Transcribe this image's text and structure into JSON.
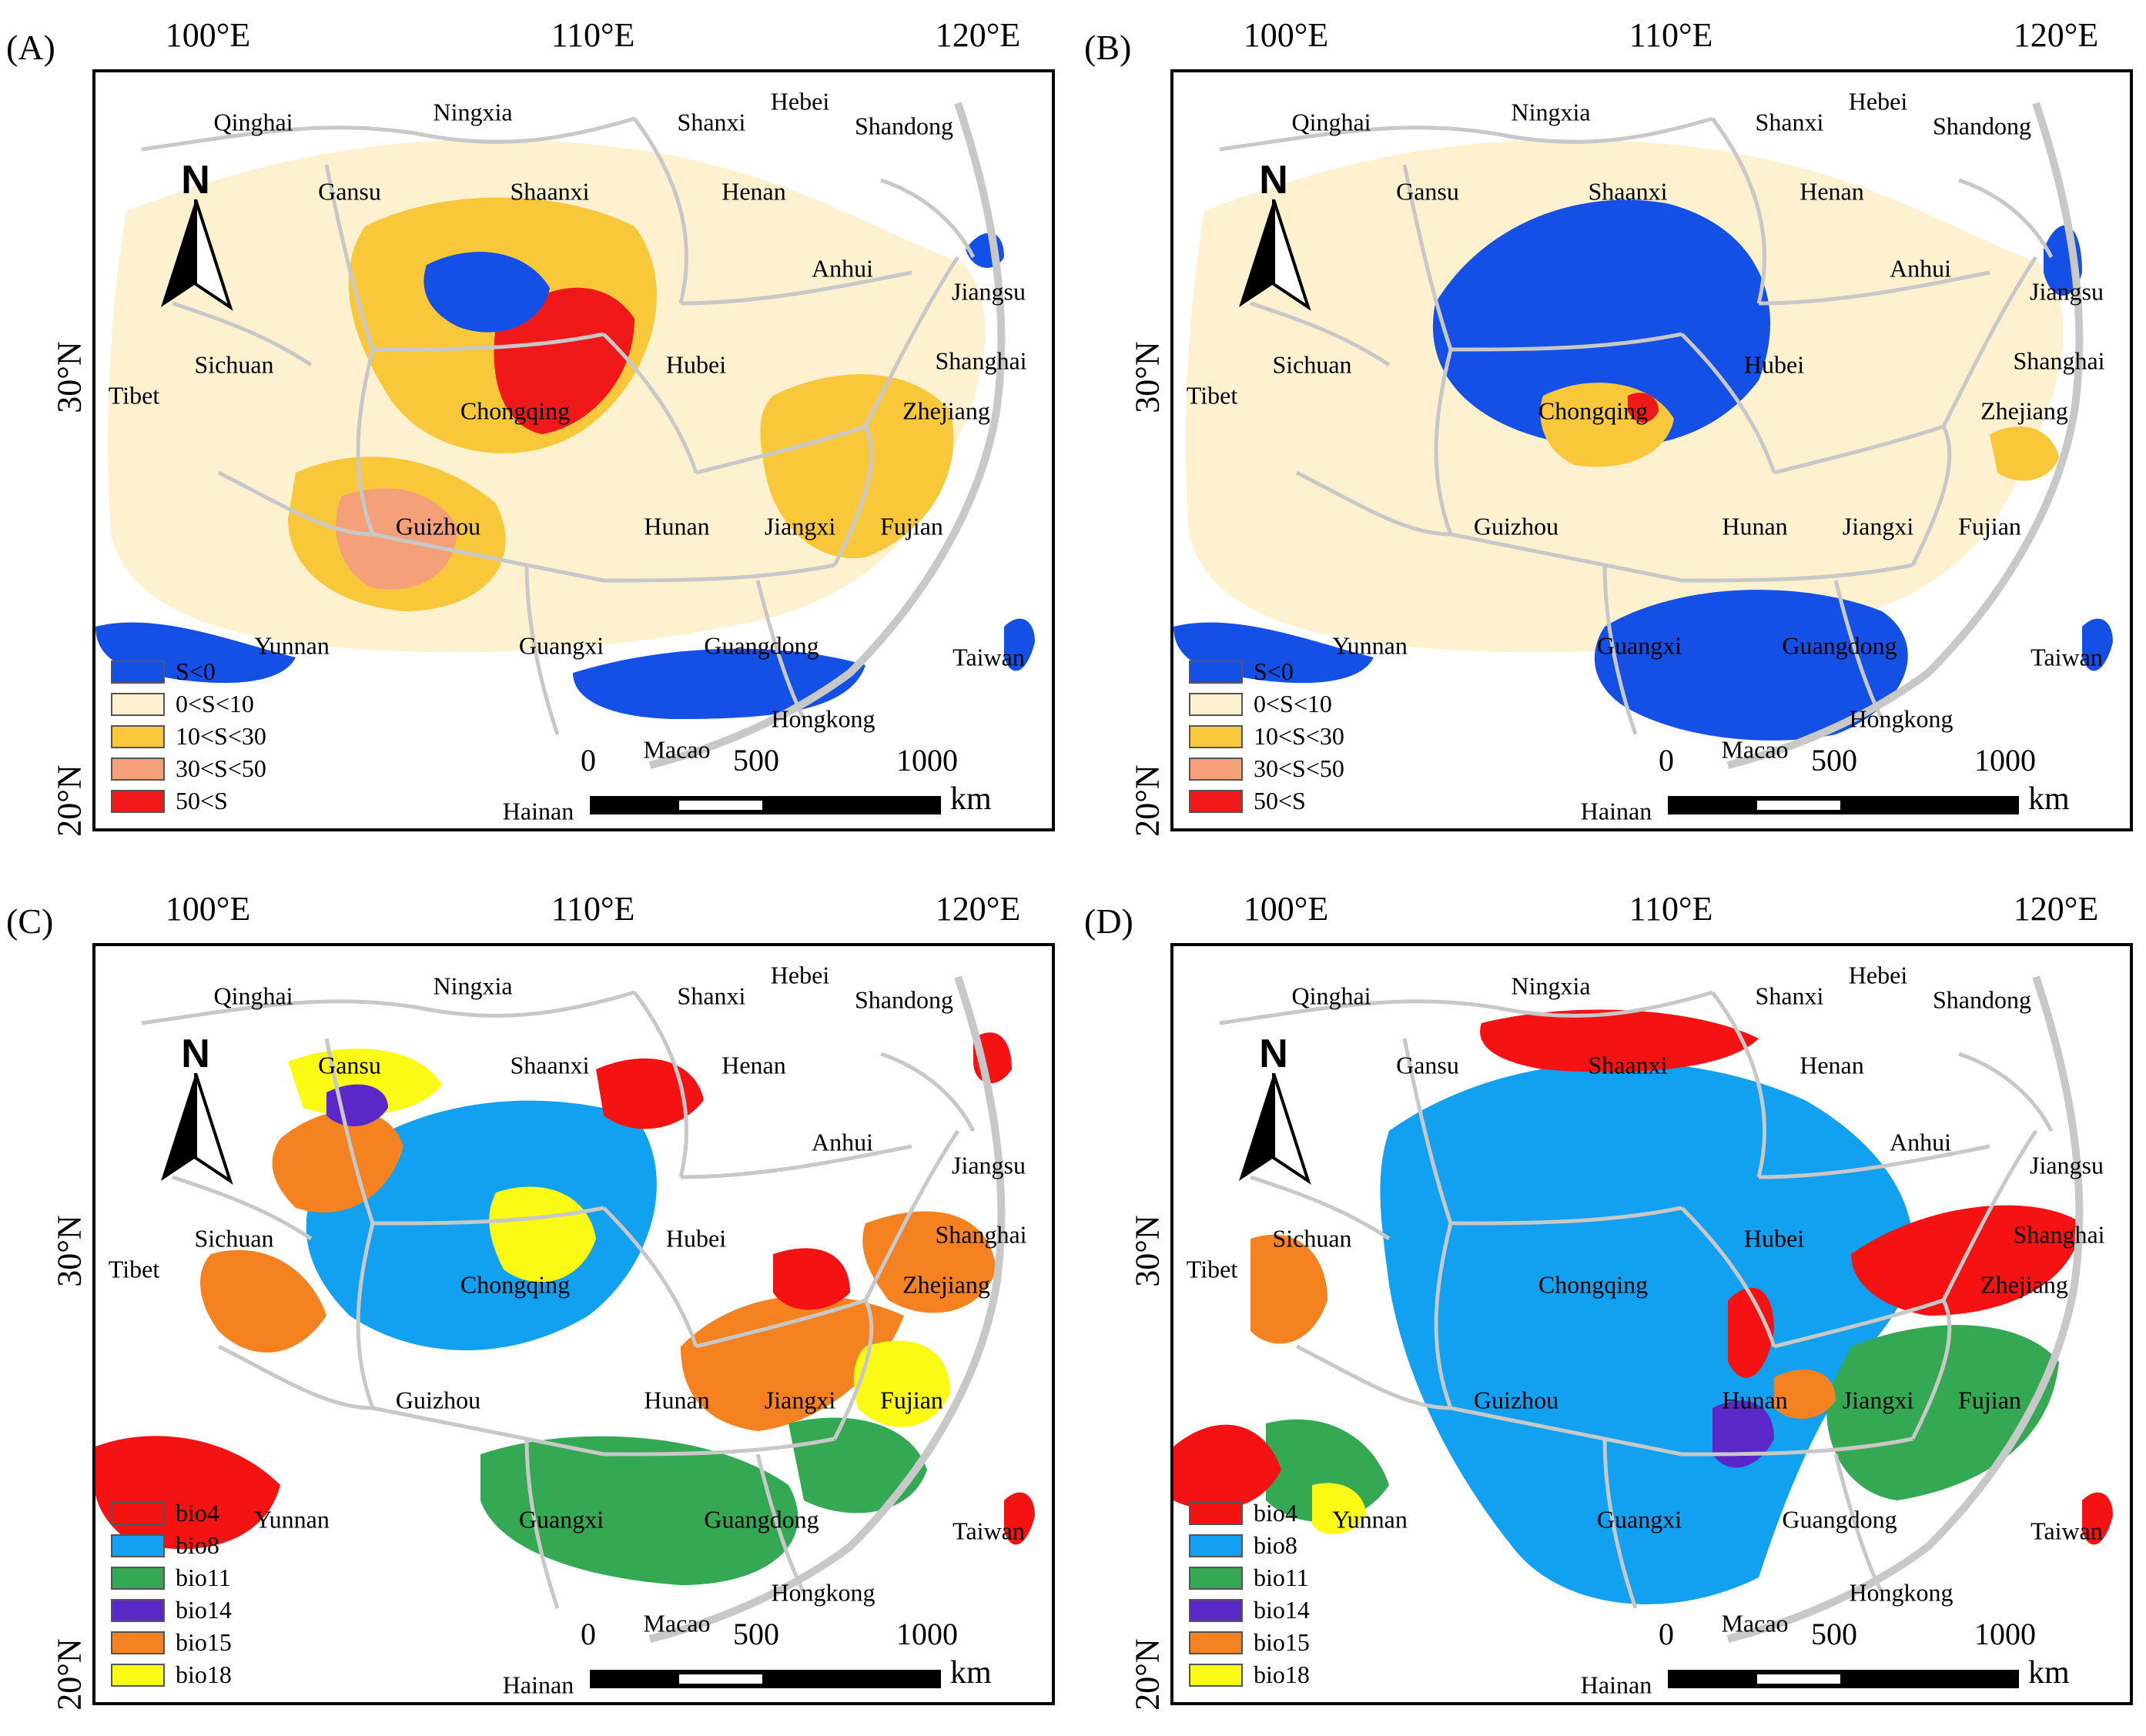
{
  "panels": [
    {
      "letter": "(A)",
      "type": "suitability",
      "legend": [
        {
          "label": "S<0",
          "color": "#1450e6"
        },
        {
          "label": "0<S<10",
          "color": "#fdf1cf"
        },
        {
          "label": "10<S<30",
          "color": "#f8c83a"
        },
        {
          "label": "30<S<50",
          "color": "#f6a07a"
        },
        {
          "label": "50<S",
          "color": "#f01818"
        }
      ]
    },
    {
      "letter": "(B)",
      "type": "suitability",
      "legend": [
        {
          "label": "S<0",
          "color": "#1450e6"
        },
        {
          "label": "0<S<10",
          "color": "#fdf1cf"
        },
        {
          "label": "10<S<30",
          "color": "#f8c83a"
        },
        {
          "label": "30<S<50",
          "color": "#f6a07a"
        },
        {
          "label": "50<S",
          "color": "#f01818"
        }
      ]
    },
    {
      "letter": "(C)",
      "type": "variables",
      "legend": [
        {
          "label": "bio4",
          "color": "#f51212"
        },
        {
          "label": "bio8",
          "color": "#12a0f0"
        },
        {
          "label": "bio11",
          "color": "#34a853"
        },
        {
          "label": "bio14",
          "color": "#5a28c8"
        },
        {
          "label": "bio15",
          "color": "#f58220"
        },
        {
          "label": "bio18",
          "color": "#fafa14"
        }
      ]
    },
    {
      "letter": "(D)",
      "type": "variables",
      "legend": [
        {
          "label": "bio4",
          "color": "#f51212"
        },
        {
          "label": "bio8",
          "color": "#12a0f0"
        },
        {
          "label": "bio11",
          "color": "#34a853"
        },
        {
          "label": "bio14",
          "color": "#5a28c8"
        },
        {
          "label": "bio15",
          "color": "#f58220"
        },
        {
          "label": "bio18",
          "color": "#fafa14"
        }
      ]
    }
  ],
  "axes": {
    "lon_labels": [
      "100°E",
      "110°E",
      "120°E"
    ],
    "lat_labels": [
      "30°N",
      "20°N"
    ]
  },
  "provinces": [
    "Qinghai",
    "Ningxia",
    "Shanxi",
    "Hebei",
    "Shandong",
    "Gansu",
    "Shaanxi",
    "Henan",
    "Anhui",
    "Jiangsu",
    "Sichuan",
    "Hubei",
    "Shanghai",
    "Tibet",
    "Chongqing",
    "Zhejiang",
    "Guizhou",
    "Hunan",
    "Jiangxi",
    "Fujian",
    "Yunnan",
    "Guangxi",
    "Guangdong",
    "Taiwan",
    "Hongkong",
    "Macao",
    "Hainan"
  ],
  "north_arrow": "N",
  "scale_bar": {
    "ticks": [
      "0",
      "500",
      "1000"
    ],
    "unit": "km"
  },
  "colors": {
    "background_land": "#ffffff",
    "boundary": "#c8c8c8",
    "frame": "#000000"
  }
}
